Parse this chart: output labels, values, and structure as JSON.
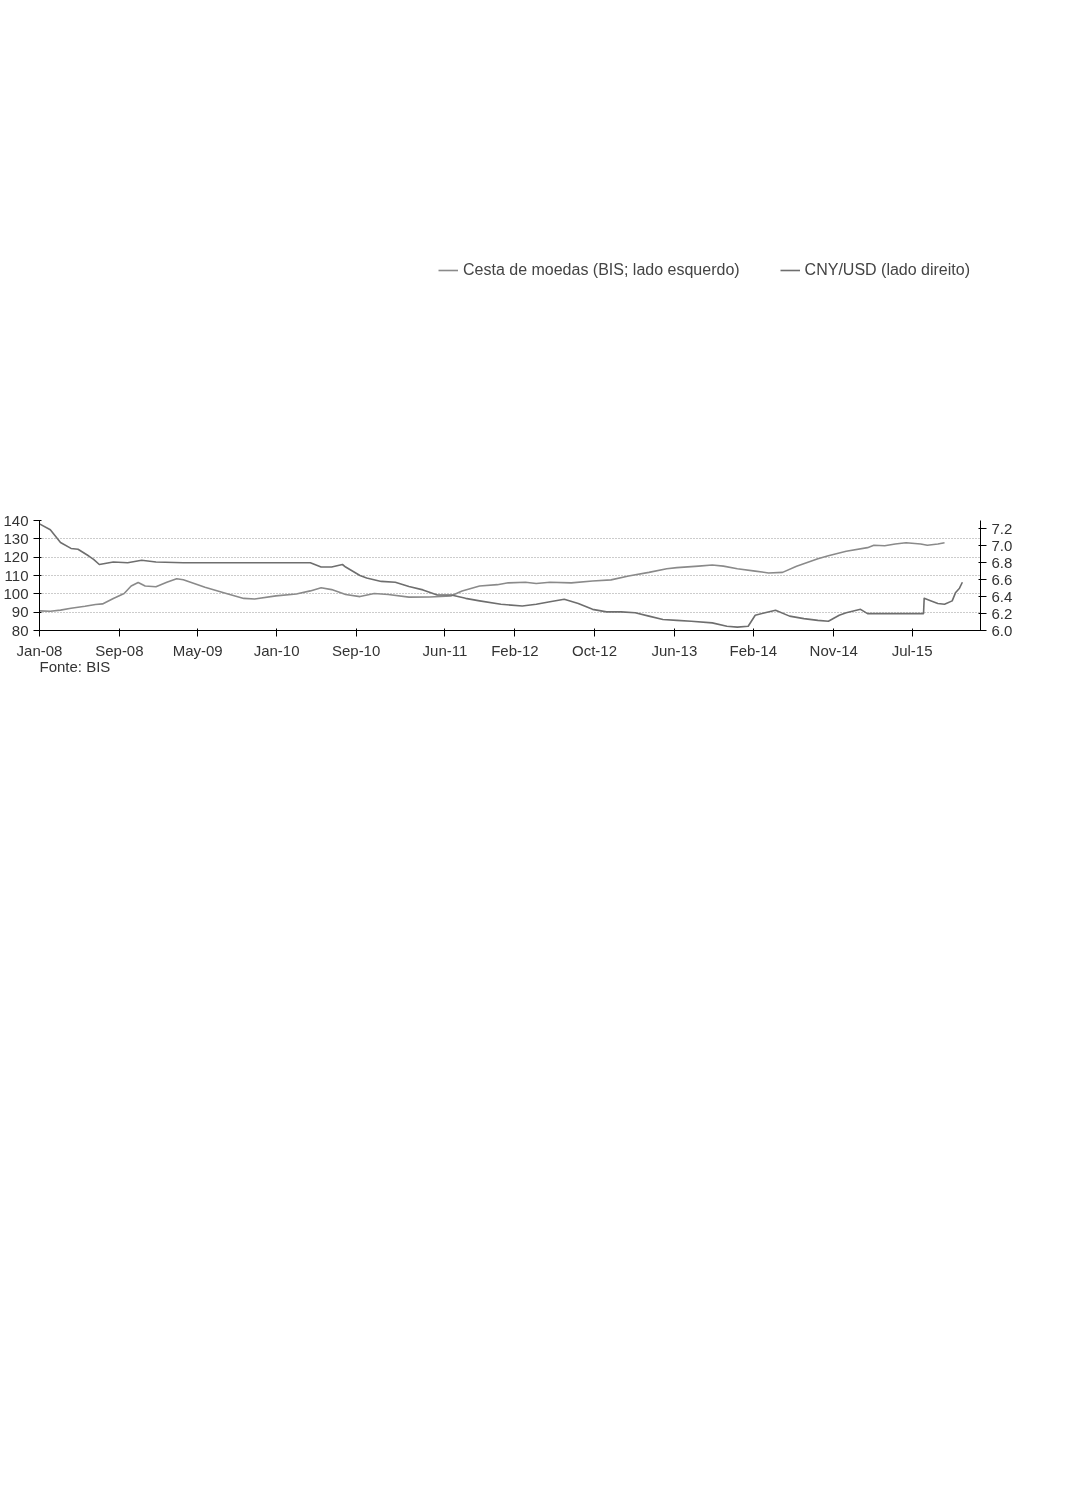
{
  "chart_data": {
    "type": "line",
    "annotations": [
      "Fonte: BIS"
    ],
    "xlim": [
      "2008-01-01",
      "2016-02-05"
    ],
    "xticks": [
      {
        "value": "2008-01-01",
        "label": "Jan-08"
      },
      {
        "value": "2008-09-08",
        "label": "Sep-08"
      },
      {
        "value": "2009-05-12",
        "label": "May-09"
      },
      {
        "value": "2010-01-15",
        "label": "Jan-10"
      },
      {
        "value": "2010-09-22",
        "label": "Sep-10"
      },
      {
        "value": "2011-06-28",
        "label": "Jun-11"
      },
      {
        "value": "2012-02-03",
        "label": "Feb-12"
      },
      {
        "value": "2012-10-10",
        "label": "Oct-12"
      },
      {
        "value": "2013-06-18",
        "label": "Jun-13"
      },
      {
        "value": "2014-02-21",
        "label": "Feb-14"
      },
      {
        "value": "2014-11-01",
        "label": "Nov-14"
      },
      {
        "value": "2015-07-05",
        "label": "Jul-15"
      }
    ],
    "ylim": [
      80,
      140
    ],
    "yticks": [
      80,
      90,
      100,
      110,
      120,
      130,
      140
    ],
    "y2lim": [
      6.0,
      7.3
    ],
    "y2ticks": [
      {
        "value": 6.0,
        "label": "6.0"
      },
      {
        "value": 6.2,
        "label": "6.2"
      },
      {
        "value": 6.4,
        "label": "6.4"
      },
      {
        "value": 6.6,
        "label": "6.6"
      },
      {
        "value": 6.8,
        "label": "6.8"
      },
      {
        "value": 7.0,
        "label": "7.0"
      },
      {
        "value": 7.2,
        "label": "7.2"
      }
    ],
    "grid": "y",
    "legend": "top",
    "line_style": "solid",
    "series": [
      {
        "name": "Cesta de moedas (BIS; lado esquerdo)",
        "color": "#8a8a8a",
        "x": [
          "2008-01-01",
          "2008-02-04",
          "2008-03-07",
          "2008-04-09",
          "2008-05-23",
          "2008-06-25",
          "2008-07-17",
          "2008-08-20",
          "2008-09-23",
          "2008-10-15",
          "2008-11-06",
          "2008-11-28",
          "2009-01-01",
          "2009-02-04",
          "2009-03-07",
          "2009-03-28",
          "2009-06-04",
          "2009-08-10",
          "2009-10-04",
          "2009-11-07",
          "2010-01-13",
          "2010-03-18",
          "2010-05-01",
          "2010-06-04",
          "2010-07-07",
          "2010-08-20",
          "2010-10-04",
          "2010-11-18",
          "2011-01-01",
          "2011-03-07",
          "2011-05-12",
          "2011-07-18",
          "2011-08-21",
          "2011-10-15",
          "2011-12-10",
          "2012-01-13",
          "2012-03-07",
          "2012-04-10",
          "2012-05-23",
          "2012-07-29",
          "2012-10-04",
          "2012-12-01",
          "2013-01-25",
          "2013-03-30",
          "2013-05-25",
          "2013-06-26",
          "2013-09-02",
          "2013-10-15",
          "2013-11-19",
          "2014-01-02",
          "2014-02-27",
          "2014-04-10",
          "2014-05-24",
          "2014-07-07",
          "2014-09-12",
          "2014-10-15",
          "2014-12-10",
          "2015-02-15",
          "2015-03-07",
          "2015-04-10",
          "2015-05-13",
          "2015-06-16",
          "2015-08-01",
          "2015-08-22",
          "2015-09-24",
          "2015-10-15"
        ],
        "values": [
          90.7,
          90.5,
          91.1,
          92.1,
          93.2,
          94.2,
          94.5,
          97.5,
          100.2,
          104.3,
          106.2,
          104.3,
          103.9,
          106.3,
          108.2,
          107.7,
          103.6,
          100.2,
          97.5,
          97.2,
          98.9,
          99.9,
          101.6,
          103.3,
          102.3,
          99.6,
          98.5,
          100.2,
          99.6,
          98.2,
          98.3,
          98.9,
          101.6,
          104.3,
          105.0,
          106.0,
          106.3,
          105.6,
          106.3,
          106.0,
          107.0,
          107.6,
          109.7,
          111.7,
          113.7,
          114.3,
          115.1,
          115.7,
          115.1,
          113.7,
          112.4,
          111.4,
          111.7,
          115.1,
          119.1,
          120.8,
          123.2,
          125.2,
          126.5,
          126.2,
          127.2,
          127.9,
          127.2,
          126.5,
          127.2,
          127.9
        ]
      },
      {
        "name": "CNY/USD (lado direito)",
        "color": "#6e6e6e",
        "axis": "y2",
        "x": [
          "2008-01-01",
          "2008-02-04",
          "2008-03-07",
          "2008-04-09",
          "2008-05-01",
          "2008-06-04",
          "2008-06-19",
          "2008-07-07",
          "2008-08-20",
          "2008-10-04",
          "2008-11-17",
          "2009-01-01",
          "2009-03-28",
          "2009-11-07",
          "2010-05-01",
          "2010-06-04",
          "2010-07-07",
          "2010-08-10",
          "2010-08-20",
          "2010-10-04",
          "2010-10-25",
          "2010-12-10",
          "2011-01-23",
          "2011-03-07",
          "2011-04-20",
          "2011-06-04",
          "2011-07-18",
          "2011-09-01",
          "2011-10-15",
          "2011-12-21",
          "2012-02-26",
          "2012-04-10",
          "2012-05-23",
          "2012-07-07",
          "2012-08-20",
          "2012-10-04",
          "2012-11-17",
          "2013-01-02",
          "2013-02-15",
          "2013-03-30",
          "2013-05-13",
          "2013-06-26",
          "2013-08-10",
          "2013-10-15",
          "2013-11-30",
          "2014-01-02",
          "2014-02-05",
          "2014-02-27",
          "2014-03-30",
          "2014-05-02",
          "2014-06-15",
          "2014-07-30",
          "2014-09-12",
          "2014-10-15",
          "2014-11-18",
          "2014-12-10",
          "2015-01-24",
          "2015-02-15",
          "2015-03-07",
          "2015-04-21",
          "2015-08-10",
          "2015-08-12",
          "2015-09-03",
          "2015-09-24",
          "2015-10-15",
          "2015-11-08",
          "2015-11-19",
          "2015-12-01",
          "2015-12-10"
        ],
        "values": [
          7.26,
          7.19,
          7.04,
          6.97,
          6.96,
          6.88,
          6.84,
          6.78,
          6.81,
          6.8,
          6.83,
          6.81,
          6.8,
          6.8,
          6.8,
          6.75,
          6.75,
          6.78,
          6.75,
          6.65,
          6.62,
          6.58,
          6.57,
          6.52,
          6.48,
          6.42,
          6.42,
          6.38,
          6.35,
          6.31,
          6.29,
          6.31,
          6.34,
          6.37,
          6.32,
          6.25,
          6.22,
          6.22,
          6.21,
          6.17,
          6.13,
          6.12,
          6.11,
          6.09,
          6.05,
          6.04,
          6.05,
          6.18,
          6.21,
          6.24,
          6.17,
          6.14,
          6.12,
          6.11,
          6.18,
          6.21,
          6.25,
          6.2,
          6.2,
          6.2,
          6.2,
          6.38,
          6.35,
          6.32,
          6.31,
          6.35,
          6.45,
          6.5,
          6.57
        ]
      }
    ]
  }
}
